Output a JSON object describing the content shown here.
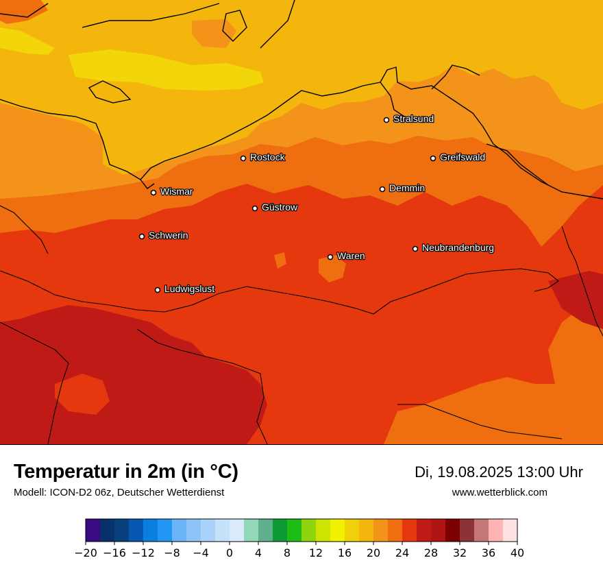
{
  "map": {
    "title": "Temperatur in 2m (in °C)",
    "model": "Modell: ICON-D2 06z, Deutscher Wetterdienst",
    "datetime": "Di, 19.08.2025 13:00 Uhr",
    "website": "www.wetterblick.com",
    "cities": [
      {
        "name": "Stralsund"
      },
      {
        "name": "Rostock"
      },
      {
        "name": "Greifswald"
      },
      {
        "name": "Wismar"
      },
      {
        "name": "Demmin"
      },
      {
        "name": "Güstrow"
      },
      {
        "name": "Schwerin"
      },
      {
        "name": "Neubrandenburg"
      },
      {
        "name": "Waren"
      },
      {
        "name": "Ludwigslust"
      }
    ]
  },
  "legend": {
    "min": -20,
    "max": 40,
    "step": 2,
    "colors": [
      "#3a0a83",
      "#08306b",
      "#08407e",
      "#0557b0",
      "#0a7fe0",
      "#2196f3",
      "#6ab4f7",
      "#8cc4f8",
      "#a9d3f9",
      "#c6e2fb",
      "#dcebfc",
      "#91d7b8",
      "#5fae8c",
      "#0e9a36",
      "#1cbe16",
      "#90d40e",
      "#cde400",
      "#f2f200",
      "#f0d00a",
      "#f4b60c",
      "#f3931a",
      "#ee6e10",
      "#e5380e",
      "#bf1a16",
      "#b01414",
      "#7d0000",
      "#8d3235",
      "#c47678",
      "#fdb4b2",
      "#fce2e2"
    ],
    "tick_labels": [
      "−20",
      "−16",
      "−12",
      "−8",
      "−4",
      "0",
      "4",
      "8",
      "12",
      "16",
      "20",
      "24",
      "28",
      "32",
      "36",
      "40"
    ]
  }
}
